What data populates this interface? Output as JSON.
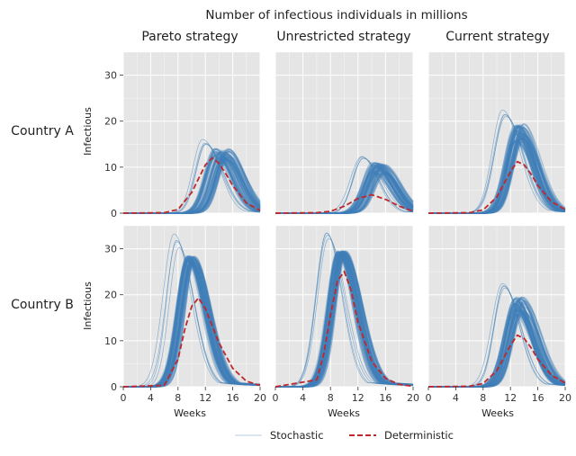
{
  "figure": {
    "suptitle": "Number of infectious individuals in millions",
    "col_titles": [
      "Pareto strategy",
      "Unrestricted strategy",
      "Current strategy"
    ],
    "row_titles": [
      "Country A",
      "Country B"
    ],
    "ylabel": "Infectious",
    "xlabel": "Weeks",
    "legend": {
      "stochastic": "Stochastic",
      "deterministic": "Deterministic",
      "placement": "bottom-center"
    },
    "colors": {
      "panel_bg": "#e5e5e5",
      "grid": "#ffffff",
      "stochastic": "#3e7fb8",
      "deterministic": "#c0272d"
    }
  },
  "chart_data": [
    {
      "type": "line",
      "country": "Country A",
      "strategy": "Pareto strategy",
      "xlim": [
        0,
        20
      ],
      "ylim": [
        0,
        35
      ],
      "xticks": [
        0,
        4,
        8,
        12,
        16,
        20
      ],
      "yticks": [
        0,
        10,
        20,
        30
      ],
      "stochastic_band": {
        "peak_min": 11.5,
        "peak_max": 14.0,
        "peak_week_min": 13.2,
        "peak_week_max": 15.5,
        "end_value_approx": 2.5
      },
      "deterministic": {
        "x": [
          0,
          6,
          8,
          10,
          11,
          12,
          13,
          14,
          15,
          16,
          18,
          20
        ],
        "y": [
          0,
          0.1,
          0.8,
          4.5,
          7.5,
          10.5,
          12.0,
          10.8,
          8.5,
          6.0,
          2.2,
          0.6
        ]
      }
    },
    {
      "type": "line",
      "country": "Country A",
      "strategy": "Unrestricted strategy",
      "xlim": [
        0,
        20
      ],
      "ylim": [
        0,
        35
      ],
      "xticks": [
        0,
        4,
        8,
        12,
        16,
        20
      ],
      "yticks": [
        0,
        10,
        20,
        30
      ],
      "stochastic_band": {
        "peak_min": 8.5,
        "peak_max": 11.0,
        "peak_week_min": 14.0,
        "peak_week_max": 16.0,
        "end_value_approx": 4.0
      },
      "deterministic": {
        "x": [
          0,
          6,
          8,
          10,
          12,
          14,
          16,
          18,
          20
        ],
        "y": [
          0,
          0.1,
          0.4,
          1.5,
          3.2,
          4.0,
          3.0,
          1.5,
          0.4
        ]
      }
    },
    {
      "type": "line",
      "country": "Country A",
      "strategy": "Current strategy",
      "xlim": [
        0,
        20
      ],
      "ylim": [
        0,
        35
      ],
      "xticks": [
        0,
        4,
        8,
        12,
        16,
        20
      ],
      "yticks": [
        0,
        10,
        20,
        30
      ],
      "stochastic_band": {
        "peak_min": 15.5,
        "peak_max": 19.5,
        "peak_week_min": 12.5,
        "peak_week_max": 14.0,
        "end_value_approx": 1.5
      },
      "deterministic": {
        "x": [
          0,
          6,
          8,
          10,
          12,
          13,
          14,
          15,
          16,
          18,
          20
        ],
        "y": [
          0,
          0.1,
          0.7,
          3.5,
          9.0,
          11.2,
          10.5,
          8.5,
          6.0,
          2.5,
          0.8
        ]
      }
    },
    {
      "type": "line",
      "country": "Country B",
      "strategy": "Pareto strategy",
      "xlim": [
        0,
        20
      ],
      "ylim": [
        0,
        35
      ],
      "xticks": [
        0,
        4,
        8,
        12,
        16,
        20
      ],
      "yticks": [
        0,
        10,
        20,
        30
      ],
      "stochastic_band": {
        "peak_min": 27.0,
        "peak_max": 28.5,
        "peak_week_min": 9.2,
        "peak_week_max": 10.5,
        "end_value_approx": 0.2
      },
      "deterministic": {
        "x": [
          0,
          6,
          8,
          9,
          10,
          11,
          12,
          14,
          16,
          18,
          20
        ],
        "y": [
          0,
          0.3,
          6.0,
          12.5,
          17.5,
          19.3,
          17.0,
          9.5,
          4.0,
          1.2,
          0.3
        ]
      }
    },
    {
      "type": "line",
      "country": "Country B",
      "strategy": "Unrestricted strategy",
      "xlim": [
        0,
        20
      ],
      "ylim": [
        0,
        35
      ],
      "xticks": [
        0,
        4,
        8,
        12,
        16,
        20
      ],
      "yticks": [
        0,
        10,
        20,
        30
      ],
      "stochastic_band": {
        "peak_min": 28.5,
        "peak_max": 29.5,
        "peak_week_min": 9.0,
        "peak_week_max": 10.3,
        "end_value_approx": 0.3
      },
      "deterministic": {
        "x": [
          0,
          6,
          7,
          8,
          9,
          10,
          11,
          12,
          14,
          16,
          18,
          20
        ],
        "y": [
          0,
          1.5,
          7.0,
          15.5,
          23.0,
          25.0,
          21.0,
          14.0,
          5.5,
          1.8,
          0.5,
          0.1
        ]
      }
    },
    {
      "type": "line",
      "country": "Country B",
      "strategy": "Current strategy",
      "xlim": [
        0,
        20
      ],
      "ylim": [
        0,
        35
      ],
      "xticks": [
        0,
        4,
        8,
        12,
        16,
        20
      ],
      "yticks": [
        0,
        10,
        20,
        30
      ],
      "stochastic_band": {
        "peak_min": 15.5,
        "peak_max": 19.5,
        "peak_week_min": 12.5,
        "peak_week_max": 14.0,
        "end_value_approx": 1.5
      },
      "deterministic": {
        "x": [
          0,
          6,
          8,
          10,
          12,
          13,
          14,
          15,
          16,
          18,
          20
        ],
        "y": [
          0,
          0.1,
          0.7,
          3.5,
          9.0,
          11.2,
          10.5,
          8.5,
          6.0,
          2.5,
          0.8
        ]
      }
    }
  ]
}
